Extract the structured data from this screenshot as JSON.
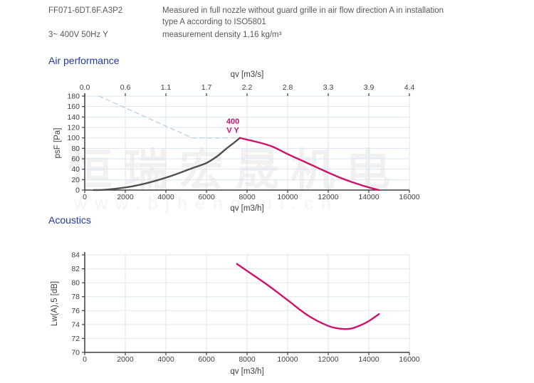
{
  "header": {
    "model": "FF071-6DT.6F.A3P2",
    "power": "3~ 400V 50Hz Y",
    "description_line1": "Measured in full nozzle without guard grille in air flow direction A in installation",
    "description_line2": "type A according to ISO5801",
    "density": "measurement density 1,16 kg/m³"
  },
  "sections": {
    "air_performance": "Air performance",
    "acoustics": "Acoustics"
  },
  "watermark": {
    "cjk": "恒瑞宏晟机电",
    "url": "www.bjhengrui.cn"
  },
  "colors": {
    "accent_magenta": "#cf116a",
    "curve_dark": "#4f4f4f",
    "dashed_blue": "#bdd3e4",
    "grid": "#dde5ed",
    "axis": "#3f3f3f",
    "tick_text": "#3f3f3f",
    "heading_blue": "#2039a5",
    "header_text": "#57575a"
  },
  "chart_data": [
    {
      "id": "air-performance",
      "type": "line",
      "title": "Air performance",
      "x_bottom": {
        "label": "qv [m3/h]",
        "min": 0,
        "max": 16000,
        "tick_step": 2000,
        "ticks": [
          0,
          2000,
          4000,
          6000,
          8000,
          10000,
          12000,
          14000,
          16000
        ]
      },
      "x_top": {
        "label": "qv [m3/s]",
        "tick_labels": [
          "0.0",
          "0.6",
          "1.1",
          "1.7",
          "2.2",
          "2.8",
          "3.3",
          "3.9",
          "4.4"
        ]
      },
      "y": {
        "label": "psF [Pa]",
        "min": 0,
        "max": 180,
        "tick_step": 20,
        "ticks": [
          0,
          20,
          40,
          60,
          80,
          100,
          120,
          140,
          160,
          180
        ]
      },
      "grid": true,
      "series": [
        {
          "name": "pressure-limit-dashed",
          "color": "#bdd3e4",
          "style": "dashed",
          "width": 1.4,
          "smooth": false,
          "points": [
            [
              700,
              180
            ],
            [
              5300,
              100
            ],
            [
              7650,
              100
            ]
          ]
        },
        {
          "name": "fan-curve",
          "color": "#4f4f4f",
          "style": "solid",
          "width": 2.4,
          "smooth": true,
          "points": [
            [
              450,
              0
            ],
            [
              1000,
              0.5
            ],
            [
              2000,
              5
            ],
            [
              2700,
              10
            ],
            [
              3500,
              18
            ],
            [
              4400,
              29
            ],
            [
              5300,
              42
            ],
            [
              6000,
              52
            ],
            [
              6500,
              64
            ],
            [
              7000,
              80
            ],
            [
              7400,
              92
            ],
            [
              7650,
              100
            ]
          ]
        },
        {
          "name": "operating-curve-400VY",
          "color": "#cf116a",
          "style": "solid",
          "width": 2.4,
          "smooth": true,
          "points": [
            [
              7650,
              100
            ],
            [
              8000,
              96.5
            ],
            [
              8300,
              94
            ],
            [
              9200,
              84
            ],
            [
              10000,
              69
            ],
            [
              10900,
              53
            ],
            [
              11800,
              37
            ],
            [
              12700,
              22
            ],
            [
              13500,
              11
            ],
            [
              14200,
              3
            ],
            [
              14500,
              0
            ]
          ]
        }
      ],
      "annotation": {
        "lines": [
          "400",
          "V Y"
        ],
        "x": 7300,
        "y": 127,
        "color": "#cf116a"
      }
    },
    {
      "id": "acoustics",
      "type": "line",
      "title": "Acoustics",
      "x_bottom": {
        "label": "qv [m3/h]",
        "min": 0,
        "max": 16000,
        "tick_step": 2000,
        "ticks": [
          0,
          2000,
          4000,
          6000,
          8000,
          10000,
          12000,
          14000,
          16000
        ]
      },
      "y": {
        "label": "Lw(A),5 [dB]",
        "min": 70,
        "max": 84,
        "tick_step": 2,
        "ticks": [
          70,
          72,
          74,
          76,
          78,
          80,
          82,
          84
        ]
      },
      "grid": true,
      "series": [
        {
          "name": "sound-power-level",
          "color": "#cf116a",
          "style": "solid",
          "width": 2.4,
          "smooth": true,
          "points": [
            [
              7500,
              82.7
            ],
            [
              8000,
              81.7
            ],
            [
              9000,
              79.7
            ],
            [
              10000,
              77.5
            ],
            [
              11000,
              75.3
            ],
            [
              12000,
              73.8
            ],
            [
              12600,
              73.4
            ],
            [
              13100,
              73.4
            ],
            [
              13600,
              73.9
            ],
            [
              14000,
              74.5
            ],
            [
              14500,
              75.5
            ]
          ]
        }
      ]
    }
  ]
}
